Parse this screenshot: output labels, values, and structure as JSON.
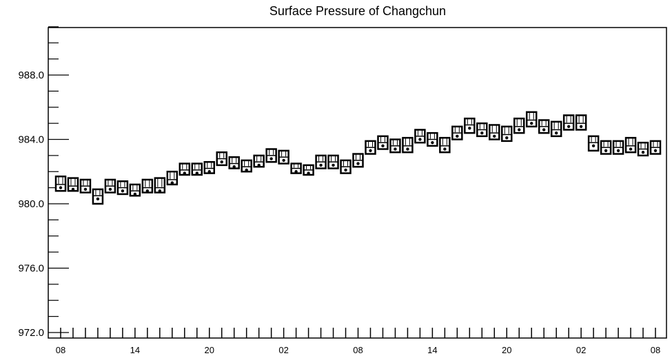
{
  "chart_data": {
    "type": "box",
    "title": "Surface Pressure of Changchun",
    "xlabel": "",
    "ylabel": "",
    "ylim": [
      972.0,
      991.0
    ],
    "yticks": [
      "972.0",
      "976.0",
      "980.0",
      "984.0",
      "988.0"
    ],
    "x_tick_labels": [
      "08",
      "14",
      "20",
      "02",
      "08",
      "14",
      "20",
      "02",
      "08"
    ],
    "x_label_every": 6,
    "grid": false,
    "n_points": 49,
    "series": [
      {
        "box_low": [
          980.8,
          980.8,
          980.7,
          980.0,
          980.7,
          980.6,
          980.5,
          980.7,
          980.7,
          981.2,
          981.8,
          981.8,
          981.9,
          982.4,
          982.2,
          982.0,
          982.3,
          982.6,
          982.5,
          981.9,
          981.8,
          982.2,
          982.2,
          981.9,
          982.3,
          983.1,
          983.4,
          983.2,
          983.2,
          983.8,
          983.6,
          983.2,
          984.0,
          984.4,
          984.2,
          984.0,
          983.9,
          984.4,
          984.8,
          984.4,
          984.2,
          984.6,
          984.6,
          983.3,
          983.1,
          983.1,
          983.2,
          983.0,
          983.1
        ],
        "box_high": [
          981.7,
          981.6,
          981.5,
          980.9,
          981.5,
          981.4,
          981.2,
          981.5,
          981.6,
          982.0,
          982.5,
          982.5,
          982.6,
          983.2,
          982.9,
          982.7,
          983.0,
          983.4,
          983.3,
          982.5,
          982.4,
          983.0,
          983.0,
          982.7,
          983.1,
          983.9,
          984.2,
          984.0,
          984.1,
          984.6,
          984.4,
          984.1,
          984.8,
          985.3,
          985.0,
          984.9,
          984.8,
          985.3,
          985.7,
          985.2,
          985.1,
          985.5,
          985.5,
          984.2,
          983.9,
          983.9,
          984.1,
          983.8,
          983.9
        ],
        "median": [
          981.2,
          981.1,
          981.1,
          980.5,
          981.1,
          981.0,
          980.8,
          981.0,
          981.0,
          981.5,
          982.1,
          982.1,
          982.2,
          982.8,
          982.5,
          982.3,
          982.6,
          983.0,
          982.9,
          982.2,
          982.1,
          982.6,
          982.6,
          982.3,
          982.7,
          983.5,
          983.8,
          983.6,
          983.6,
          984.2,
          984.0,
          983.6,
          984.4,
          984.9,
          984.6,
          984.4,
          984.3,
          984.8,
          985.2,
          984.8,
          984.6,
          985.0,
          985.0,
          983.8,
          983.5,
          983.5,
          983.6,
          983.4,
          983.5
        ],
        "mean": [
          981.0,
          980.9,
          980.9,
          980.3,
          980.9,
          980.8,
          980.6,
          980.8,
          980.8,
          981.3,
          981.9,
          981.9,
          982.0,
          982.6,
          982.3,
          982.1,
          982.4,
          982.8,
          982.7,
          982.0,
          981.9,
          982.4,
          982.4,
          982.1,
          982.5,
          983.3,
          983.6,
          983.4,
          983.4,
          984.0,
          983.8,
          983.4,
          984.2,
          984.7,
          984.4,
          984.2,
          984.1,
          984.6,
          985.0,
          984.6,
          984.4,
          984.8,
          984.8,
          983.6,
          983.3,
          983.3,
          983.4,
          983.2,
          983.3
        ]
      }
    ]
  }
}
